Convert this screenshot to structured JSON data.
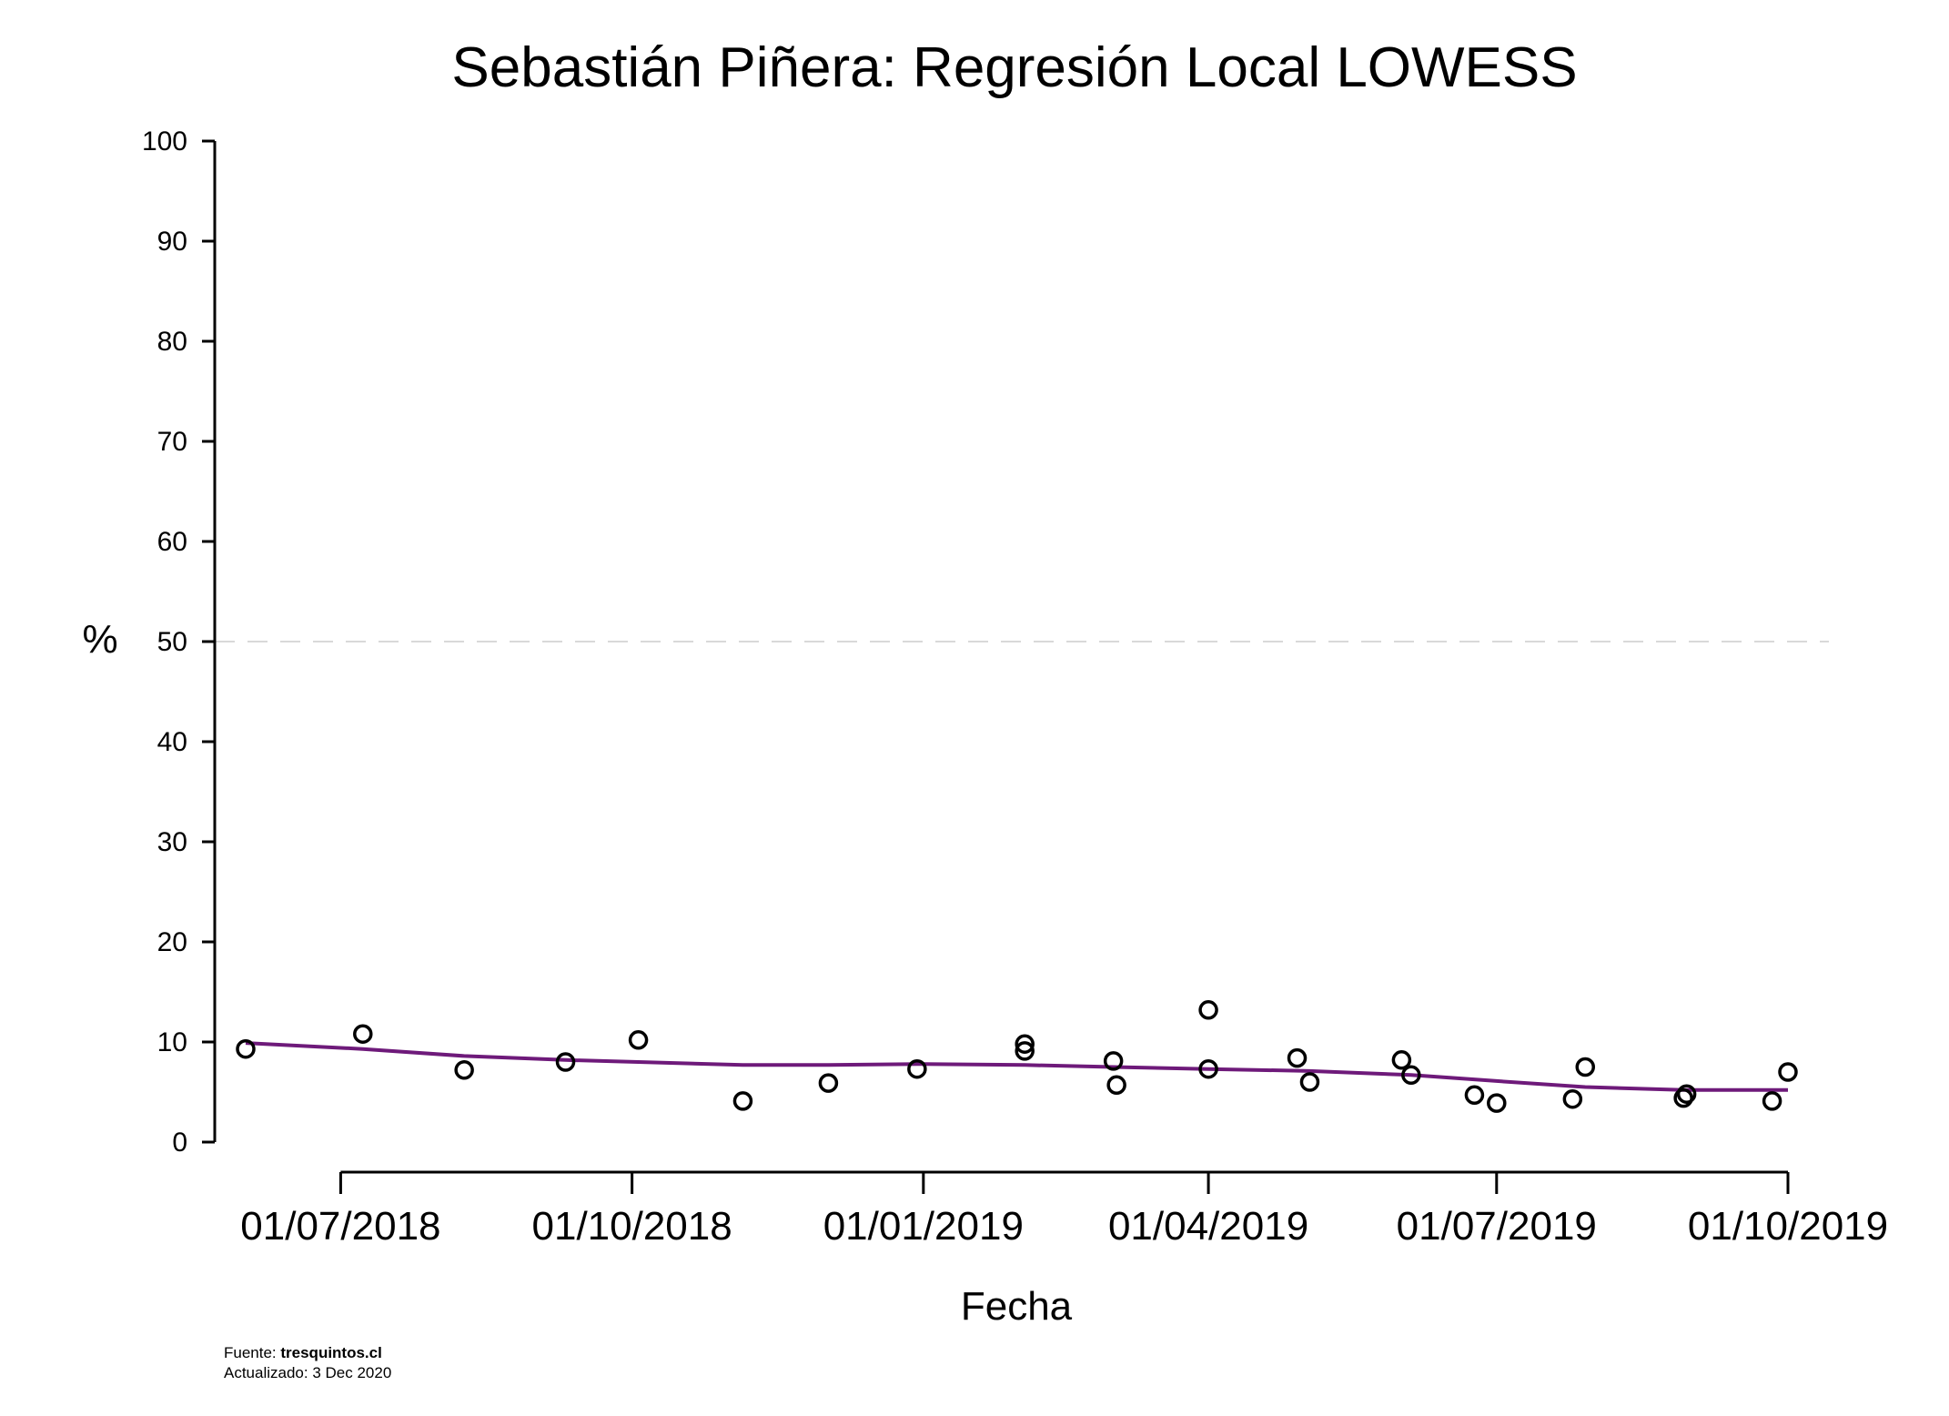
{
  "chart_data": {
    "type": "scatter",
    "title": "Sebastián Piñera: Regresión Local LOWESS",
    "xlabel": "Fecha",
    "ylabel": "%",
    "ylim": [
      0,
      100
    ],
    "yticks": [
      0,
      10,
      20,
      30,
      40,
      50,
      60,
      70,
      80,
      90,
      100
    ],
    "xlim": [
      "2018-06-01",
      "2019-10-01"
    ],
    "xticks": [
      {
        "date": "2018-07-01",
        "label": "01/07/2018"
      },
      {
        "date": "2018-10-01",
        "label": "01/10/2018"
      },
      {
        "date": "2019-01-01",
        "label": "01/01/2019"
      },
      {
        "date": "2019-04-01",
        "label": "01/04/2019"
      },
      {
        "date": "2019-07-01",
        "label": "01/07/2019"
      },
      {
        "date": "2019-10-01",
        "label": "01/10/2019"
      }
    ],
    "reference_line": {
      "y": 50,
      "style": "dashed",
      "color": "#d9d9d9"
    },
    "grid": false,
    "points": [
      {
        "x": "2018-06-01",
        "y": 9.3
      },
      {
        "x": "2018-07-08",
        "y": 10.8
      },
      {
        "x": "2018-08-09",
        "y": 7.2
      },
      {
        "x": "2018-09-10",
        "y": 8.0
      },
      {
        "x": "2018-10-03",
        "y": 10.2
      },
      {
        "x": "2018-11-05",
        "y": 4.1
      },
      {
        "x": "2018-12-02",
        "y": 5.9
      },
      {
        "x": "2018-12-30",
        "y": 7.3
      },
      {
        "x": "2019-02-02",
        "y": 9.8
      },
      {
        "x": "2019-02-02",
        "y": 9.1
      },
      {
        "x": "2019-03-02",
        "y": 8.1
      },
      {
        "x": "2019-03-03",
        "y": 5.7
      },
      {
        "x": "2019-04-01",
        "y": 13.2
      },
      {
        "x": "2019-04-01",
        "y": 7.3
      },
      {
        "x": "2019-04-29",
        "y": 8.4
      },
      {
        "x": "2019-05-03",
        "y": 6.0
      },
      {
        "x": "2019-06-01",
        "y": 8.2
      },
      {
        "x": "2019-06-04",
        "y": 6.7
      },
      {
        "x": "2019-06-24",
        "y": 4.7
      },
      {
        "x": "2019-07-01",
        "y": 3.9
      },
      {
        "x": "2019-07-25",
        "y": 4.3
      },
      {
        "x": "2019-07-29",
        "y": 7.5
      },
      {
        "x": "2019-08-29",
        "y": 4.4
      },
      {
        "x": "2019-08-30",
        "y": 4.8
      },
      {
        "x": "2019-09-26",
        "y": 4.1
      },
      {
        "x": "2019-10-01",
        "y": 7.0
      }
    ],
    "lowess": {
      "color": "#6e1a7a",
      "points": [
        {
          "x": "2018-06-01",
          "y": 9.9
        },
        {
          "x": "2018-07-08",
          "y": 9.3
        },
        {
          "x": "2018-08-09",
          "y": 8.6
        },
        {
          "x": "2018-09-10",
          "y": 8.2
        },
        {
          "x": "2018-10-03",
          "y": 8.0
        },
        {
          "x": "2018-11-05",
          "y": 7.7
        },
        {
          "x": "2018-12-02",
          "y": 7.7
        },
        {
          "x": "2018-12-30",
          "y": 7.8
        },
        {
          "x": "2019-02-02",
          "y": 7.7
        },
        {
          "x": "2019-03-02",
          "y": 7.5
        },
        {
          "x": "2019-04-01",
          "y": 7.3
        },
        {
          "x": "2019-05-03",
          "y": 7.1
        },
        {
          "x": "2019-06-04",
          "y": 6.7
        },
        {
          "x": "2019-07-01",
          "y": 6.1
        },
        {
          "x": "2019-07-29",
          "y": 5.5
        },
        {
          "x": "2019-08-29",
          "y": 5.2
        },
        {
          "x": "2019-10-01",
          "y": 5.2
        }
      ]
    }
  },
  "footer": {
    "source_prefix": "Fuente: ",
    "source_name": "tresquintos.cl",
    "updated": "Actualizado: 3 Dec 2020"
  }
}
